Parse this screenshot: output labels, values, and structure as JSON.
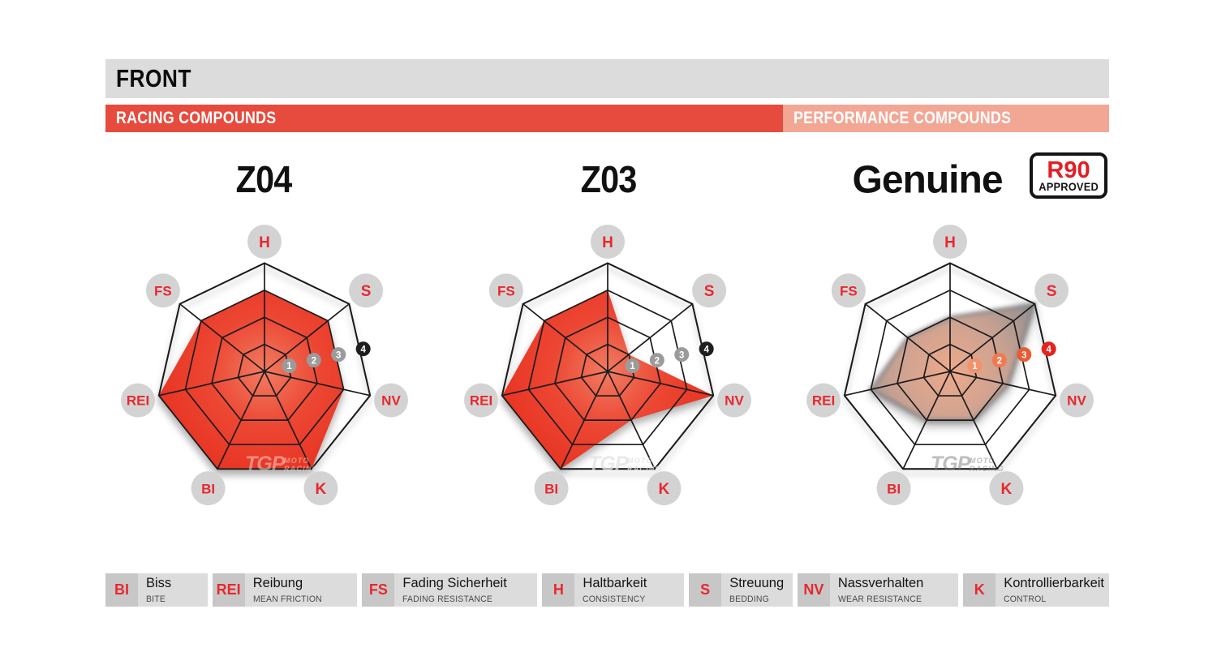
{
  "header": {
    "title": "FRONT",
    "racing_label": "RACING COMPOUNDS",
    "performance_label": "PERFORMANCE COMPOUNDS"
  },
  "badge": {
    "line1": "R90",
    "line2": "APPROVED"
  },
  "watermark": {
    "tgp": "TGP",
    "moto": "MOTO",
    "racing": "RACING"
  },
  "scale_markers": [
    "1",
    "2",
    "3",
    "4"
  ],
  "chart_data": [
    {
      "type": "radar",
      "title": "Z04",
      "group": "RACING COMPOUNDS",
      "axes": [
        "H",
        "S",
        "NV",
        "K",
        "BI",
        "REI",
        "FS"
      ],
      "values": [
        3,
        3,
        3,
        4,
        4,
        4,
        3
      ],
      "scale_min": 0,
      "scale_max": 4,
      "rings": 4,
      "style": "red",
      "fill_gradient": [
        "#f17c62",
        "#ec4733",
        "#e83322"
      ],
      "marker_colors": [
        "#9b9b9b",
        "#9b9b9b",
        "#9b9b9b",
        "#1e1e1e"
      ],
      "watermark_color": "rgba(255,255,255,0.42)"
    },
    {
      "type": "radar",
      "title": "Z03",
      "group": "RACING COMPOUNDS",
      "axes": [
        "H",
        "S",
        "NV",
        "K",
        "BI",
        "REI",
        "FS"
      ],
      "values": [
        3,
        1,
        4,
        2,
        4,
        4,
        3
      ],
      "scale_min": 0,
      "scale_max": 4,
      "rings": 4,
      "style": "red",
      "fill_gradient": [
        "#f17c62",
        "#ec4733",
        "#e83322"
      ],
      "marker_colors": [
        "#9b9b9b",
        "#9b9b9b",
        "#9b9b9b",
        "#1e1e1e"
      ],
      "watermark_color": "rgba(225,225,225,0.75)"
    },
    {
      "type": "radar",
      "title": "Genuine",
      "group": "PERFORMANCE COMPOUNDS",
      "badge": "R90 APPROVED",
      "axes": [
        "H",
        "S",
        "NV",
        "K",
        "BI",
        "REI",
        "FS"
      ],
      "values": [
        2,
        4,
        2.2,
        2,
        2,
        3,
        2
      ],
      "scale_min": 0,
      "scale_max": 4,
      "rings": 4,
      "style": "smoke",
      "fill_gradient": [
        "#eda584",
        "#c89e8d",
        "#87888b"
      ],
      "marker_colors": [
        "#f2916c",
        "#f0794f",
        "#ec5a31",
        "#e3231f"
      ],
      "watermark_color": "rgba(125,125,128,0.5)"
    }
  ],
  "legend": {
    "items": [
      {
        "abbr": "BI",
        "de": "Biss",
        "en": "BITE"
      },
      {
        "abbr": "REI",
        "de": "Reibung",
        "en": "MEAN FRICTION"
      },
      {
        "abbr": "FS",
        "de": "Fading Sicherheit",
        "en": "FADING RESISTANCE"
      },
      {
        "abbr": "H",
        "de": "Haltbarkeit",
        "en": "CONSISTENCY"
      },
      {
        "abbr": "S",
        "de": "Streuung",
        "en": "BEDDING"
      },
      {
        "abbr": "NV",
        "de": "Nassverhalten",
        "en": "WEAR RESISTANCE"
      },
      {
        "abbr": "K",
        "de": "Kontrollierbarkeit",
        "en": "CONTROL"
      }
    ]
  },
  "colors": {
    "header_bar": "#dcdcdd",
    "racing_band": "#e64b3e",
    "performance_band": "#f2a795",
    "axis_label_circle": "#d3d3d4",
    "axis_label_text": "#e8282d",
    "web_line": "#1c1c1c",
    "legend_abbr_box": "#c7c7c8",
    "legend_desc_box": "#dcdcdd",
    "badge_red": "#e31e24",
    "title_text": "#111111"
  }
}
